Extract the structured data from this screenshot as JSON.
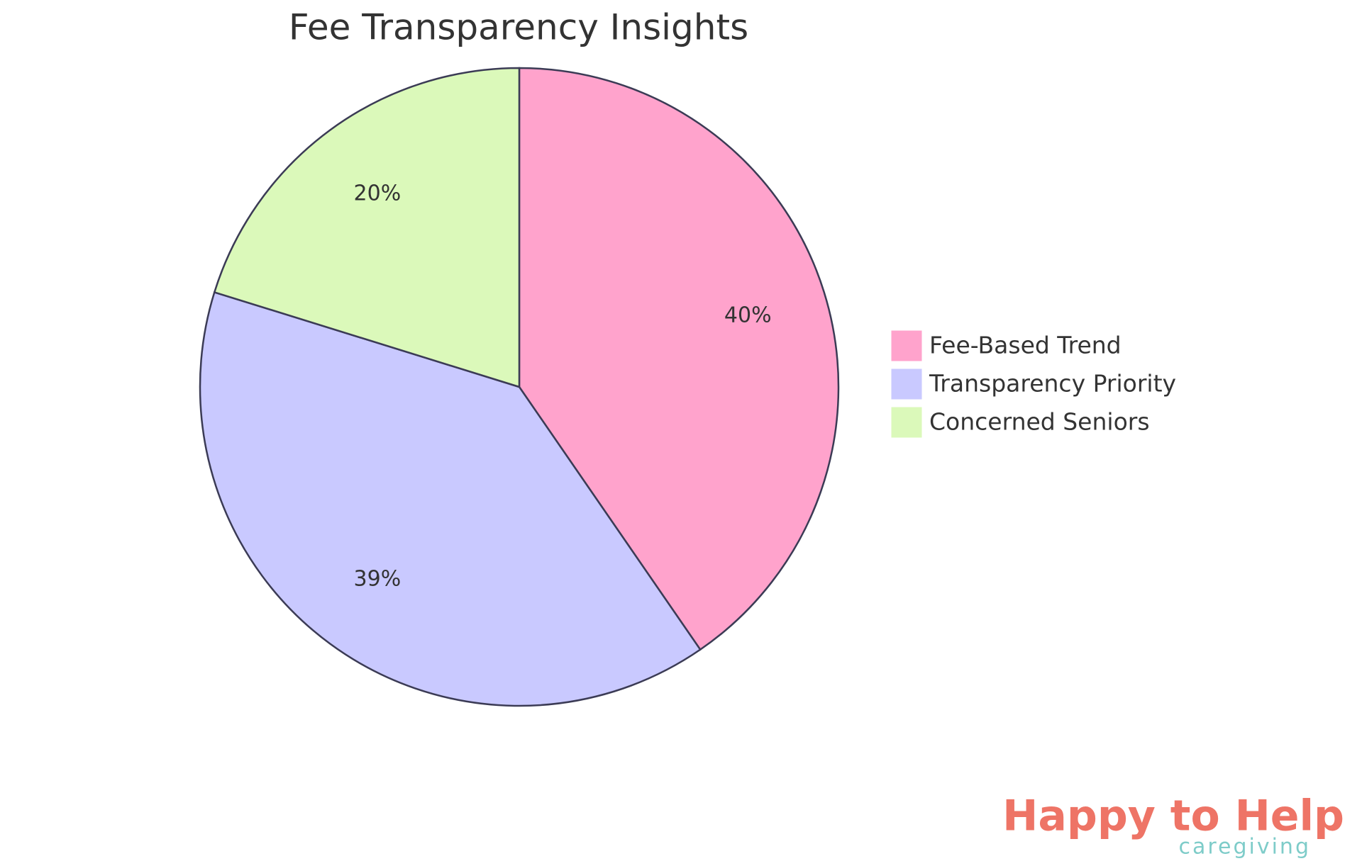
{
  "chart_data": {
    "type": "pie",
    "title": "Fee Transparency Insights",
    "categories": [
      "Fee-Based Trend",
      "Transparency Priority",
      "Concerned Seniors"
    ],
    "values": [
      40,
      39,
      20
    ],
    "value_labels": [
      "40%",
      "39%",
      "20%"
    ],
    "colors": [
      "#ffa3cc",
      "#c9c9ff",
      "#dbf9ba"
    ],
    "legend": "right"
  },
  "logo": {
    "name": "Happy to Help",
    "tagline": "caregiving"
  }
}
